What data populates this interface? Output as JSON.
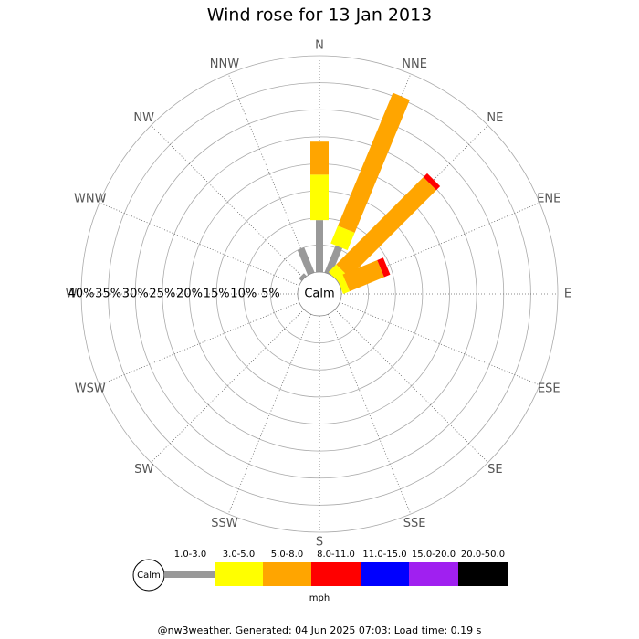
{
  "chart_data": {
    "type": "wind-rose",
    "title": "Wind rose for 13 Jan 2013",
    "categories": [
      "N",
      "NNE",
      "NE",
      "ENE",
      "E",
      "ESE",
      "SE",
      "SSE",
      "S",
      "SSW",
      "SW",
      "WSW",
      "W",
      "WNW",
      "NW",
      "NNW"
    ],
    "series": [
      {
        "name": "1.0-3.0",
        "color": "#999999",
        "values": [
          9.6,
          5.4,
          0,
          0,
          0,
          0,
          0,
          0,
          0,
          0,
          0,
          0,
          0,
          0,
          0.7,
          5
        ]
      },
      {
        "name": "3.0-5.0",
        "color": "#ffff00",
        "values": [
          8.4,
          3.5,
          2,
          1.3,
          0,
          0,
          0,
          0,
          0,
          0,
          0,
          0,
          0,
          0,
          0,
          0
        ]
      },
      {
        "name": "5.0-8.0",
        "color": "#ffa500",
        "values": [
          6.1,
          26.6,
          22.8,
          6.9,
          0,
          0,
          0,
          0,
          0,
          0,
          0,
          0,
          0,
          0,
          0,
          0
        ]
      },
      {
        "name": "8.0-11.0",
        "color": "#ff0000",
        "values": [
          0,
          0,
          1,
          1.2,
          0,
          0,
          0,
          0,
          0,
          0,
          0,
          0,
          0,
          0,
          0,
          0
        ]
      },
      {
        "name": "11.0-15.0",
        "color": "#0000ff",
        "values": [
          0,
          0,
          0,
          0,
          0,
          0,
          0,
          0,
          0,
          0,
          0,
          0,
          0,
          0,
          0,
          0
        ]
      },
      {
        "name": "15.0-20.0",
        "color": "#a020f0",
        "values": [
          0,
          0,
          0,
          0,
          0,
          0,
          0,
          0,
          0,
          0,
          0,
          0,
          0,
          0,
          0,
          0
        ]
      },
      {
        "name": "20.0-50.0",
        "color": "#000000",
        "values": [
          0,
          0,
          0,
          0,
          0,
          0,
          0,
          0,
          0,
          0,
          0,
          0,
          0,
          0,
          0,
          0
        ]
      }
    ],
    "ylim": [
      0,
      40
    ],
    "yticks": [
      {
        "value": 40,
        "label": "40%"
      },
      {
        "value": 35,
        "label": "35%"
      },
      {
        "value": 30,
        "label": "30%"
      },
      {
        "value": 25,
        "label": "25%"
      },
      {
        "value": 20,
        "label": "20%"
      },
      {
        "value": 15,
        "label": "15%"
      },
      {
        "value": 10,
        "label": "10%"
      },
      {
        "value": 5,
        "label": "5%"
      }
    ],
    "calm_label": "Calm",
    "legend_unit": "mph",
    "footer": "@nw3weather. Generated: 04 Jun 2025 07:03; Load time: 0.19 s"
  }
}
